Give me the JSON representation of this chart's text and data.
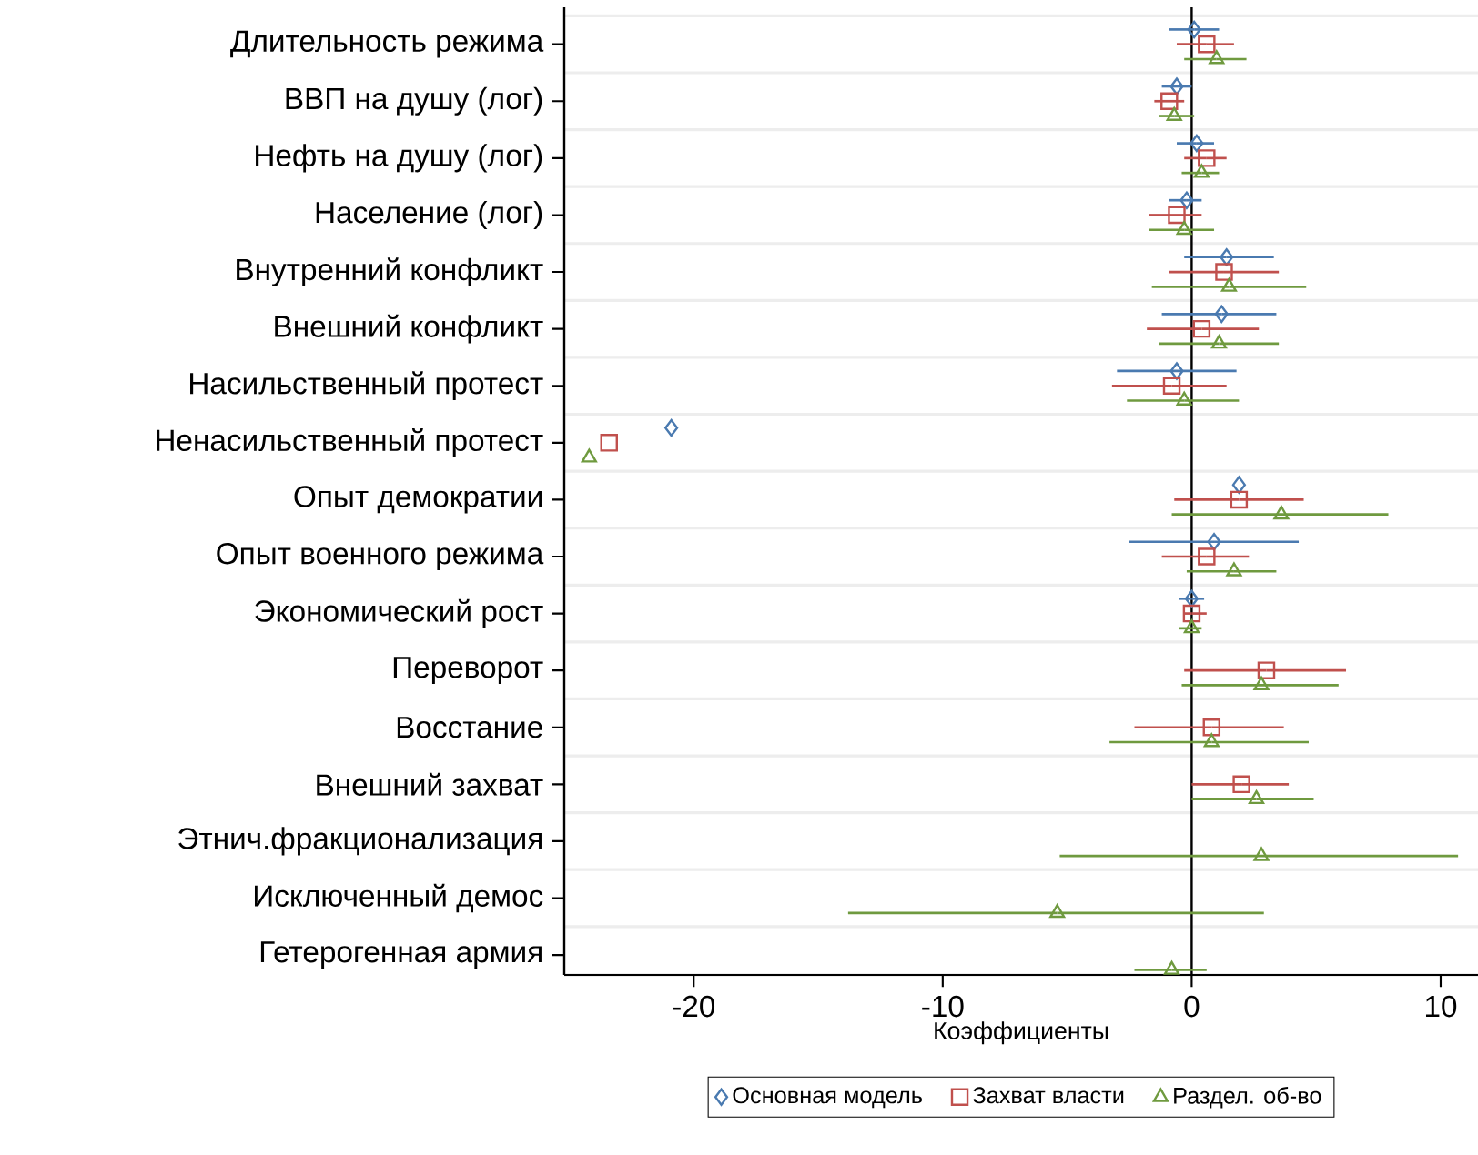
{
  "chart_data": {
    "type": "scatter",
    "orientation": "horizontal",
    "xlabel": "Коэффициенты",
    "categories": [
      "Длительность режима",
      "ВВП на душу (лог)",
      "Нефть на душу  (лог)",
      "Население (лог)",
      "Внутренний конфликт",
      "Внешний конфликт",
      "Насильственный протест",
      "Ненасильственный протест",
      "Опыт демократии",
      "Опыт военного режима",
      "Экономический рост",
      "Переворот",
      "Восстание",
      "Внешний захват",
      "Этнич.фракционализация",
      "Исключенный демос",
      "Гетерогенная армия"
    ],
    "xlim": [
      -25.2,
      11.5
    ],
    "xticks": [
      -20,
      -10,
      0,
      10
    ],
    "grid": "y",
    "legend": "bottom",
    "ref_lines": [
      {
        "axis": "x",
        "value": 0,
        "color": "#000000"
      }
    ],
    "series": [
      {
        "name": "Основная модель",
        "color": "#4a7ab0",
        "marker": "diamond",
        "values": [
          0.1,
          -0.6,
          0.2,
          -0.2,
          1.4,
          1.2,
          -0.6,
          -20.9,
          1.9,
          0.9,
          0.0,
          null,
          null,
          null,
          null,
          null,
          null
        ],
        "errors": [
          [
            -0.9,
            1.1
          ],
          [
            -1.2,
            0.0
          ],
          [
            -0.6,
            0.9
          ],
          [
            -0.9,
            0.4
          ],
          [
            -0.3,
            3.3
          ],
          [
            -1.2,
            3.4
          ],
          [
            -3.0,
            1.8
          ],
          null,
          null,
          [
            -2.5,
            4.3
          ],
          [
            -0.5,
            0.5
          ],
          null,
          null,
          null,
          null,
          null,
          null
        ]
      },
      {
        "name": "Захват власти",
        "color": "#c0504d",
        "marker": "square",
        "values": [
          0.6,
          -0.9,
          0.6,
          -0.6,
          1.3,
          0.4,
          -0.8,
          -23.4,
          1.9,
          0.6,
          0.0,
          3.0,
          0.8,
          2.0,
          null,
          null,
          null
        ],
        "errors": [
          [
            -0.6,
            1.7
          ],
          [
            -1.5,
            -0.3
          ],
          [
            -0.3,
            1.4
          ],
          [
            -1.7,
            0.4
          ],
          [
            -0.9,
            3.5
          ],
          [
            -1.8,
            2.7
          ],
          [
            -3.2,
            1.4
          ],
          null,
          [
            -0.7,
            4.5
          ],
          [
            -1.2,
            2.3
          ],
          [
            -0.3,
            0.6
          ],
          [
            -0.3,
            6.2
          ],
          [
            -2.3,
            3.7
          ],
          [
            0.0,
            3.9
          ],
          null,
          null,
          null
        ]
      },
      {
        "name": "Раздел. об-во",
        "color": "#6f9a3f",
        "marker": "triangle",
        "values": [
          1.0,
          -0.7,
          0.4,
          -0.3,
          1.5,
          1.1,
          -0.3,
          -24.2,
          3.6,
          1.7,
          0.0,
          2.8,
          0.8,
          2.6,
          2.8,
          -5.4,
          -0.8
        ],
        "errors": [
          [
            -0.3,
            2.2
          ],
          [
            -1.3,
            0.1
          ],
          [
            -0.4,
            1.1
          ],
          [
            -1.7,
            0.9
          ],
          [
            -1.6,
            4.6
          ],
          [
            -1.3,
            3.5
          ],
          [
            -2.6,
            1.9
          ],
          null,
          [
            -0.8,
            7.9
          ],
          [
            -0.2,
            3.4
          ],
          [
            -0.5,
            0.4
          ],
          [
            -0.4,
            5.9
          ],
          [
            -3.3,
            4.7
          ],
          [
            0.0,
            4.9
          ],
          [
            -5.3,
            10.7
          ],
          [
            -13.8,
            2.9
          ],
          [
            -2.3,
            0.6
          ]
        ]
      }
    ]
  }
}
